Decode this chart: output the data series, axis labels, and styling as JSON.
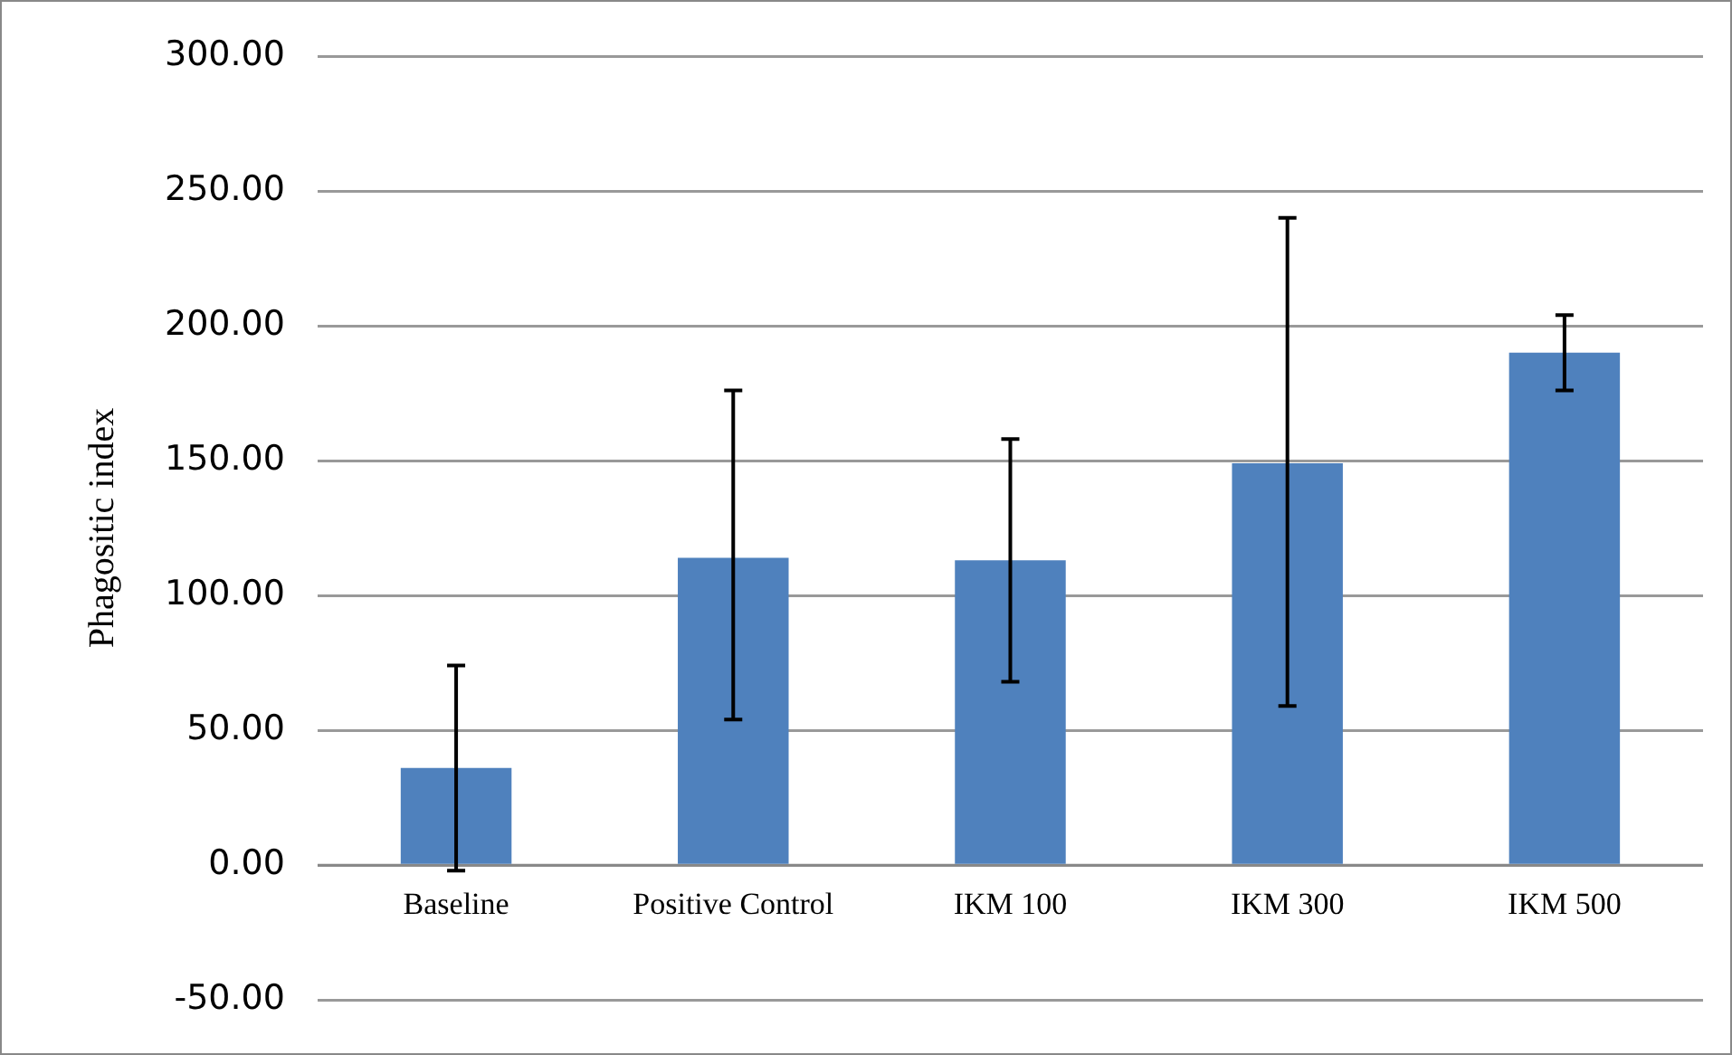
{
  "chart_data": {
    "type": "bar",
    "ylabel": "Phagositic index",
    "categories": [
      "Baseline",
      "Positive Control",
      "IKM 100",
      "IKM 300",
      "IKM 500"
    ],
    "values": [
      36,
      114,
      113,
      149,
      190
    ],
    "errors": [
      [
        -2,
        74
      ],
      [
        54,
        176
      ],
      [
        68,
        158
      ],
      [
        59,
        240
      ],
      [
        176,
        204
      ]
    ],
    "color": "#4f81bd",
    "ylim": [
      -50,
      300
    ],
    "yticks": [
      {
        "value": -50,
        "label": "-50.00"
      },
      {
        "value": 0,
        "label": "0.00"
      },
      {
        "value": 50,
        "label": "50.00"
      },
      {
        "value": 100,
        "label": "100.00"
      },
      {
        "value": 150,
        "label": "150.00"
      },
      {
        "value": 200,
        "label": "200.00"
      },
      {
        "value": 250,
        "label": "250.00"
      },
      {
        "value": 300,
        "label": "300.00"
      }
    ],
    "grid": "y",
    "legend": false
  }
}
